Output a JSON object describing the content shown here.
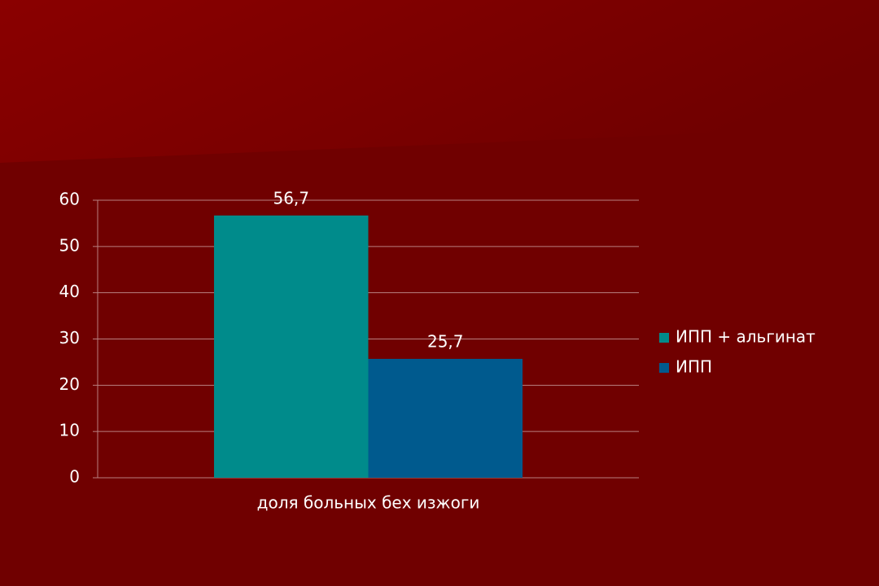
{
  "chart_data": {
    "type": "bar",
    "categories": [
      "доля больных бех изжоги"
    ],
    "series": [
      {
        "name": "ИПП + альгинат",
        "color": "#008b8b",
        "values": [
          56.7
        ],
        "value_labels": [
          "56,7"
        ]
      },
      {
        "name": "ИПП",
        "color": "#005a8e",
        "values": [
          25.7
        ],
        "value_labels": [
          "25,7"
        ]
      }
    ],
    "ylim": [
      0,
      60
    ],
    "yticks": [
      0,
      10,
      20,
      30,
      40,
      50,
      60
    ],
    "grid": true,
    "legend": "right"
  }
}
